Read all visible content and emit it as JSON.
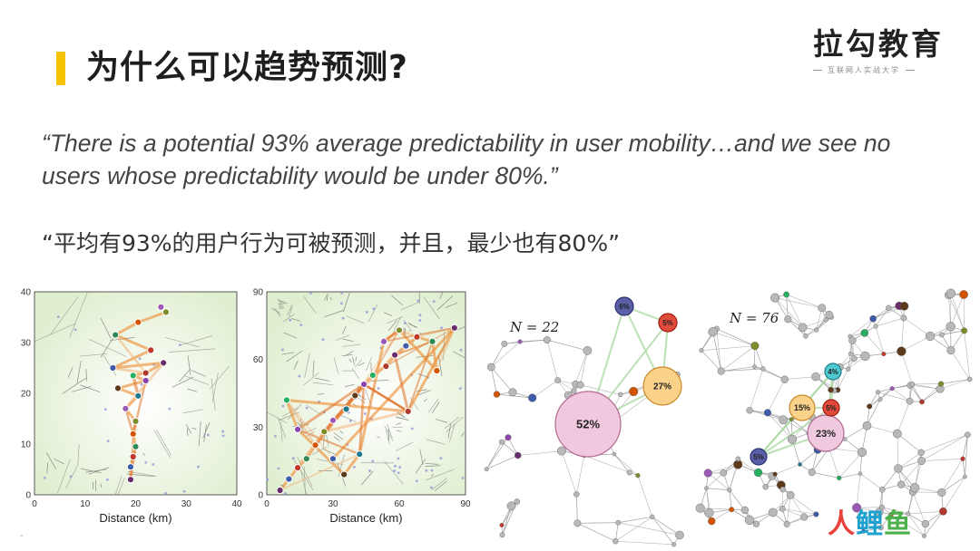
{
  "slide": {
    "title": "为什么可以趋势预测?",
    "quote_en": "“There is a potential 93% average predictability in user mobility…and we see no users whose predictability would be under 80%.”",
    "quote_zh": "“平均有93%的用户行为可被预测，并且，最少也有80%”"
  },
  "brand": {
    "name": "拉勾教育",
    "tagline": "互联网人实战大学"
  },
  "watermark": {
    "part1": "人",
    "part2": "鲤",
    "part3": "鱼"
  },
  "page_marker": "-",
  "colors": {
    "accent": "#f6c300",
    "trajectory": "#ef8a2c",
    "voronoi_bg": "#dfeecf"
  },
  "chart_data": [
    {
      "type": "scatter",
      "title": "",
      "xlabel": "Distance (km)",
      "ylabel": "",
      "xlim": [
        0,
        40
      ],
      "ylim": [
        0,
        40
      ],
      "xticks": [
        "0",
        "10",
        "20",
        "30",
        "40"
      ],
      "yticks": [
        "0",
        "10",
        "20",
        "30",
        "40"
      ],
      "grid": false,
      "points": [
        {
          "x": 19,
          "y": 3
        },
        {
          "x": 19,
          "y": 5.5
        },
        {
          "x": 19.5,
          "y": 7.5
        },
        {
          "x": 20,
          "y": 9.5
        },
        {
          "x": 19.5,
          "y": 12
        },
        {
          "x": 20,
          "y": 14.5
        },
        {
          "x": 18,
          "y": 17
        },
        {
          "x": 20.5,
          "y": 19.5
        },
        {
          "x": 16.5,
          "y": 21
        },
        {
          "x": 22,
          "y": 22.5
        },
        {
          "x": 19.5,
          "y": 23.5
        },
        {
          "x": 22,
          "y": 24
        },
        {
          "x": 25.5,
          "y": 26
        },
        {
          "x": 15.5,
          "y": 25
        },
        {
          "x": 23,
          "y": 28.5
        },
        {
          "x": 16,
          "y": 31.5
        },
        {
          "x": 20.5,
          "y": 34
        },
        {
          "x": 26,
          "y": 36
        },
        {
          "x": 25,
          "y": 37
        }
      ]
    },
    {
      "type": "scatter",
      "title": "",
      "xlabel": "Distance (km)",
      "ylabel": "",
      "xlim": [
        0,
        90
      ],
      "ylim": [
        0,
        90
      ],
      "xticks": [
        "0",
        "30",
        "60",
        "90"
      ],
      "yticks": [
        "0",
        "30",
        "60",
        "90"
      ],
      "grid": false,
      "points": [
        {
          "x": 6,
          "y": 2
        },
        {
          "x": 10,
          "y": 7
        },
        {
          "x": 14,
          "y": 12
        },
        {
          "x": 18,
          "y": 16
        },
        {
          "x": 22,
          "y": 22
        },
        {
          "x": 26,
          "y": 28
        },
        {
          "x": 30,
          "y": 33
        },
        {
          "x": 36,
          "y": 38
        },
        {
          "x": 40,
          "y": 44
        },
        {
          "x": 44,
          "y": 49
        },
        {
          "x": 48,
          "y": 53
        },
        {
          "x": 54,
          "y": 57
        },
        {
          "x": 58,
          "y": 62
        },
        {
          "x": 63,
          "y": 66
        },
        {
          "x": 68,
          "y": 70
        },
        {
          "x": 75,
          "y": 68
        },
        {
          "x": 77,
          "y": 55
        },
        {
          "x": 60,
          "y": 73
        },
        {
          "x": 53,
          "y": 68
        },
        {
          "x": 42,
          "y": 18
        },
        {
          "x": 35,
          "y": 9
        },
        {
          "x": 14,
          "y": 29
        },
        {
          "x": 9,
          "y": 42
        },
        {
          "x": 64,
          "y": 37
        },
        {
          "x": 85,
          "y": 74
        },
        {
          "x": 30,
          "y": 16
        }
      ]
    }
  ],
  "networks": [
    {
      "label": "N = 22",
      "hub_percentages": [
        "52%",
        "27%",
        "6%",
        "5%"
      ]
    },
    {
      "label": "N = 76",
      "hub_percentages": [
        "23%",
        "15%",
        "5%",
        "4%",
        "5%"
      ]
    }
  ]
}
